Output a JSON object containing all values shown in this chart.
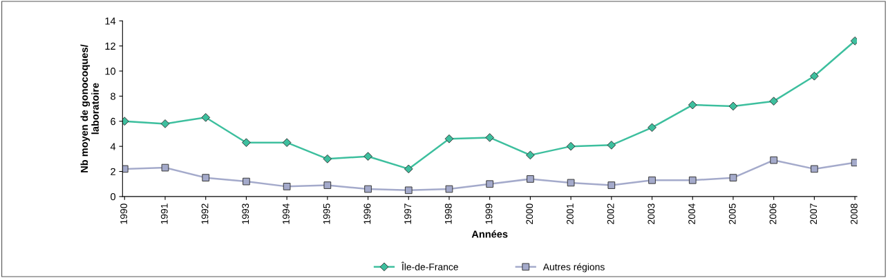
{
  "chart_data": {
    "type": "line",
    "xlabel": "Années",
    "ylabel": "Nb moyen de gonocoques/\nlaboratoire",
    "categories": [
      "1990",
      "1991",
      "1992",
      "1993",
      "1994",
      "1995",
      "1996",
      "1997",
      "1998",
      "1999",
      "2000",
      "2001",
      "2002",
      "2003",
      "2004",
      "2005",
      "2006",
      "2007",
      "2008"
    ],
    "series": [
      {
        "name": "Île-de-France",
        "color": "#3dbf9e",
        "marker": "diamond",
        "values": [
          6.0,
          5.8,
          6.3,
          4.3,
          4.3,
          3.0,
          3.2,
          2.2,
          4.6,
          4.7,
          3.3,
          4.0,
          4.1,
          5.5,
          7.3,
          7.2,
          7.6,
          9.6,
          12.4
        ]
      },
      {
        "name": "Autres régions",
        "color": "#a4aacb",
        "marker": "square",
        "values": [
          2.2,
          2.3,
          1.5,
          1.2,
          0.8,
          0.9,
          0.6,
          0.5,
          0.6,
          1.0,
          1.4,
          1.1,
          0.9,
          1.3,
          1.3,
          1.5,
          2.9,
          2.2,
          2.7
        ]
      }
    ],
    "ylim": [
      0,
      14
    ],
    "yticks": [
      0,
      2,
      4,
      6,
      8,
      10,
      12,
      14
    ],
    "grid": false,
    "legend": "bottom"
  }
}
